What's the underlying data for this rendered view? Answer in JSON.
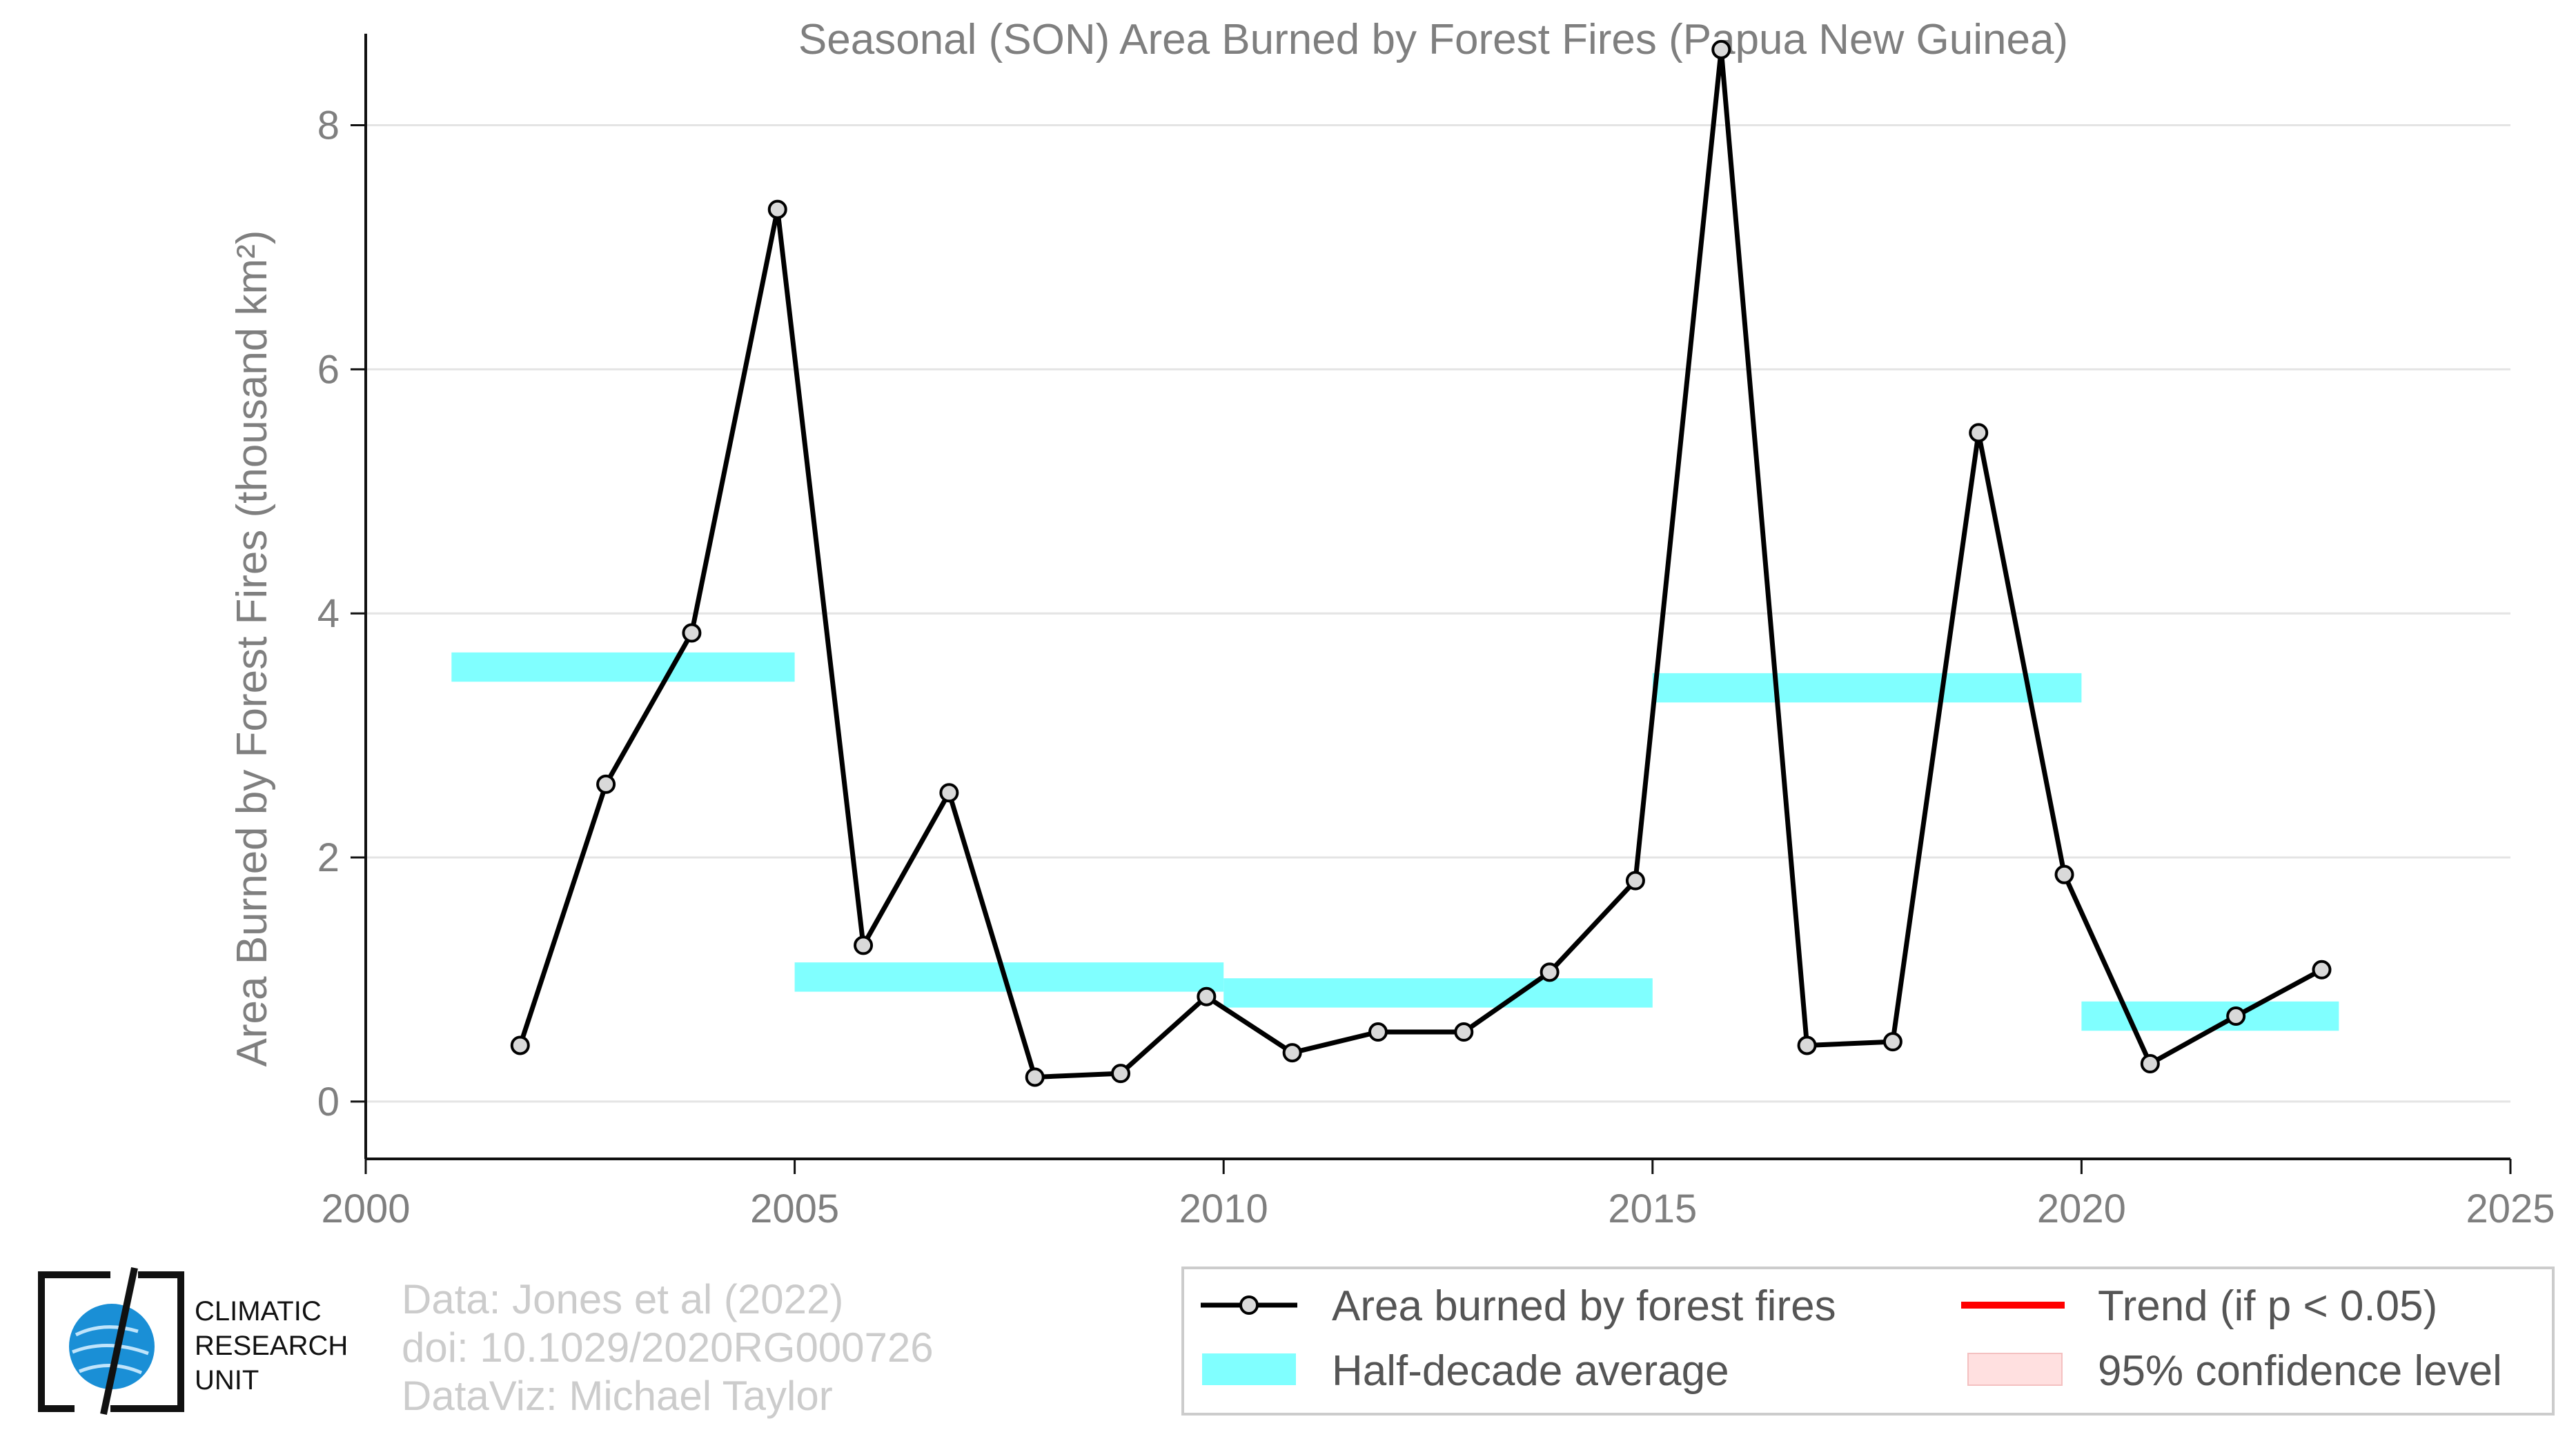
{
  "chart_data": {
    "type": "line",
    "title": "Seasonal (SON) Area Burned by Forest Fires (Papua New Guinea)",
    "ylabel": "Area Burned by Forest Fires (thousand km²)",
    "xlabel": "",
    "xlim": [
      2000,
      2025
    ],
    "ylim": [
      -0.47,
      8.8
    ],
    "xticks": [
      2000,
      2005,
      2010,
      2015,
      2020,
      2025
    ],
    "yticks": [
      0,
      2,
      4,
      6,
      8
    ],
    "grid": "horizontal",
    "series": [
      {
        "name": "Area burned by forest fires",
        "color": "#000000",
        "x": [
          2001.8,
          2002.8,
          2003.8,
          2004.8,
          2005.8,
          2006.8,
          2007.8,
          2008.8,
          2009.8,
          2010.8,
          2011.8,
          2012.8,
          2013.8,
          2014.8,
          2015.8,
          2016.8,
          2017.8,
          2018.8,
          2019.8,
          2020.8,
          2021.8,
          2022.8
        ],
        "values": [
          0.46,
          2.6,
          3.84,
          7.31,
          1.28,
          2.53,
          0.2,
          0.23,
          0.86,
          0.4,
          0.57,
          0.57,
          1.06,
          1.81,
          8.62,
          0.46,
          0.49,
          5.48,
          1.86,
          0.31,
          0.7,
          1.08
        ]
      }
    ],
    "half_decade_average": {
      "name": "Half-decade average",
      "color": "#80ffff",
      "segments": [
        {
          "x0": 2001,
          "x1": 2005,
          "value": 3.56
        },
        {
          "x0": 2005,
          "x1": 2010,
          "value": 1.02
        },
        {
          "x0": 2010,
          "x1": 2015,
          "value": 0.89
        },
        {
          "x0": 2015,
          "x1": 2020,
          "value": 3.39
        },
        {
          "x0": 2020,
          "x1": 2023,
          "value": 0.7
        }
      ]
    },
    "legend": {
      "position": "bottom-right",
      "entries": [
        {
          "label": "Area burned by forest fires",
          "kind": "line-marker",
          "color": "#000000"
        },
        {
          "label": "Trend (if p < 0.05)",
          "kind": "line",
          "color": "#ff0000"
        },
        {
          "label": "Half-decade average",
          "kind": "band",
          "color": "#80ffff"
        },
        {
          "label": "95% confidence level",
          "kind": "band",
          "color": "#ffe0e0"
        }
      ]
    }
  },
  "credits": {
    "line1": "Data: Jones et al (2022)",
    "line2": "doi: 10.1029/2020RG000726",
    "line3": "DataViz: Michael Taylor"
  },
  "logo": {
    "line1": "CLIMATIC",
    "line2": "RESEARCH",
    "line3": "UNIT",
    "accent": "#1a8fd6"
  }
}
